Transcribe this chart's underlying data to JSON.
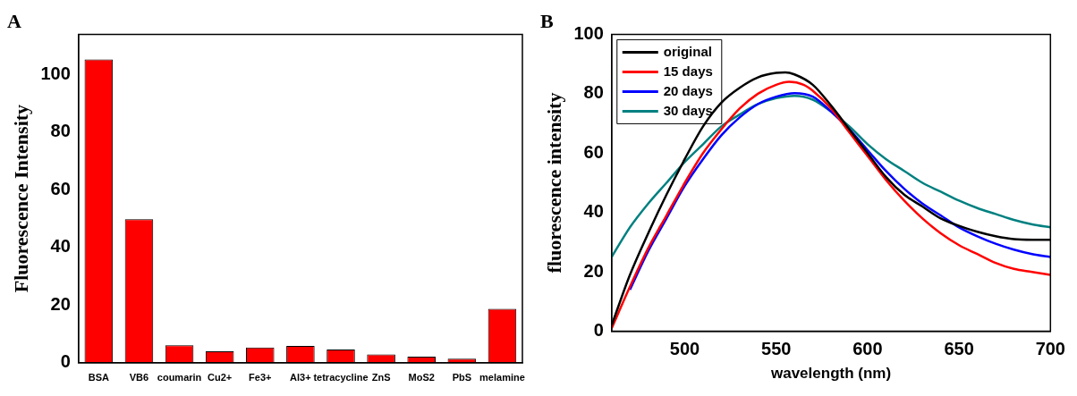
{
  "chart_data": [
    {
      "type": "bar",
      "title": "A",
      "ylabel": "Fluorescence Intensity",
      "categories": [
        "BSA",
        "VB6",
        "coumarin",
        "Cu2+",
        "Fe3+",
        "Al3+",
        "tetracycline",
        "ZnS",
        "MoS2",
        "PbS",
        "melamine"
      ],
      "values": [
        105.3,
        49.8,
        6.1,
        4.0,
        5.3,
        5.8,
        4.6,
        2.9,
        2.1,
        1.4,
        18.7
      ],
      "color": "#ff0000",
      "ylim": [
        0,
        114
      ],
      "yticks": [
        0,
        20,
        40,
        60,
        80,
        100
      ]
    },
    {
      "type": "line",
      "title": "B",
      "xlabel": "wavelength (nm)",
      "ylabel": "fluorescence intensity",
      "xlim": [
        460,
        700
      ],
      "xticks": [
        500,
        550,
        600,
        650,
        700
      ],
      "ylim": [
        0,
        100
      ],
      "yticks": [
        0,
        20,
        40,
        60,
        80,
        100
      ],
      "legend": "top left",
      "marker": "none",
      "line_style": "solid",
      "series": [
        {
          "name": "original",
          "color": "#000000",
          "x": [
            460,
            470,
            480,
            490,
            500,
            510,
            520,
            530,
            540,
            550,
            555,
            560,
            570,
            580,
            590,
            600,
            610,
            620,
            630,
            640,
            650,
            660,
            670,
            680,
            690,
            700
          ],
          "values": [
            2,
            19,
            33,
            46,
            58,
            69,
            77,
            82,
            85.5,
            87,
            87.2,
            86.5,
            83,
            76,
            68,
            60,
            52,
            46,
            42,
            38,
            35.5,
            33.5,
            32,
            31,
            30.8,
            30.8
          ]
        },
        {
          "name": "15 days",
          "color": "#ff0000",
          "x": [
            460,
            470,
            480,
            490,
            500,
            510,
            520,
            530,
            540,
            550,
            557,
            565,
            570,
            580,
            590,
            600,
            610,
            620,
            630,
            640,
            650,
            660,
            670,
            680,
            690,
            700
          ],
          "values": [
            1,
            15,
            28,
            39,
            50,
            60,
            68,
            75,
            80,
            83,
            84,
            83,
            81,
            75,
            67,
            59,
            51,
            44,
            38,
            33,
            29,
            26,
            23,
            21,
            20,
            19
          ]
        },
        {
          "name": "20 days",
          "color": "#0000ff",
          "x": [
            470,
            480,
            490,
            500,
            510,
            520,
            530,
            540,
            550,
            560,
            570,
            580,
            590,
            600,
            610,
            620,
            630,
            640,
            650,
            660,
            670,
            680,
            690,
            700
          ],
          "values": [
            14,
            27,
            38,
            49,
            58,
            66,
            72,
            76.5,
            79,
            80.2,
            79,
            74,
            68,
            61,
            54,
            48,
            43,
            39,
            35,
            32,
            29.5,
            27.5,
            26,
            25
          ]
        },
        {
          "name": "30 days",
          "color": "#008080",
          "x": [
            460,
            470,
            480,
            490,
            500,
            510,
            520,
            530,
            540,
            550,
            560,
            570,
            580,
            590,
            600,
            610,
            620,
            630,
            640,
            650,
            660,
            670,
            680,
            690,
            700
          ],
          "values": [
            25,
            35,
            43,
            50,
            57,
            63,
            69,
            73,
            76.5,
            78.5,
            79.3,
            78,
            74,
            69,
            63,
            58,
            54,
            50,
            47,
            44,
            41.5,
            39.5,
            37.5,
            36,
            35
          ]
        }
      ]
    }
  ]
}
